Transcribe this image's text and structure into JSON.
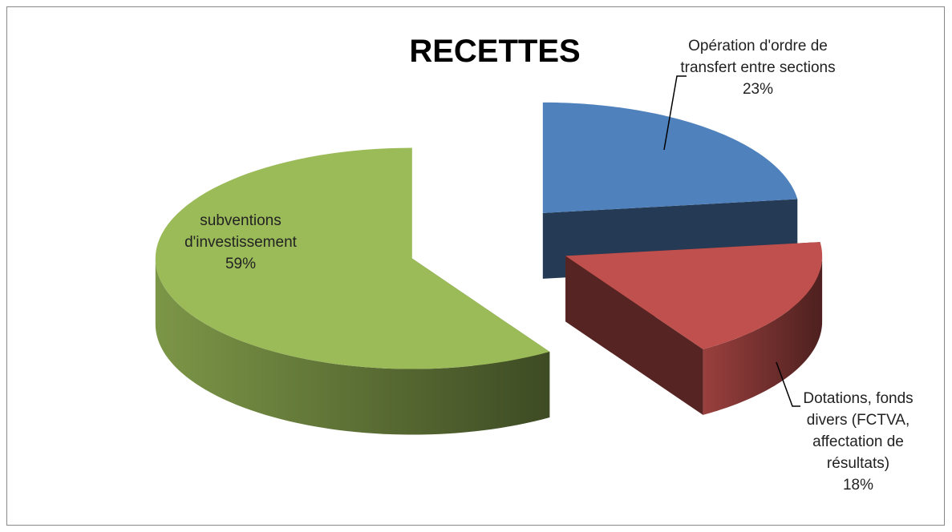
{
  "chart_data": {
    "type": "pie3d",
    "title": "RECETTES",
    "categories": [
      "Opération d'ordre de transfert entre sections",
      "Dotations, fonds divers (FCTVA, affectation de résultats)",
      "subventions d'investissement"
    ],
    "values": [
      23,
      18,
      59
    ],
    "value_labels": [
      "23%",
      "18%",
      "59%"
    ],
    "colors": [
      "#4f81bd",
      "#c0504d",
      "#9bbb59"
    ]
  }
}
